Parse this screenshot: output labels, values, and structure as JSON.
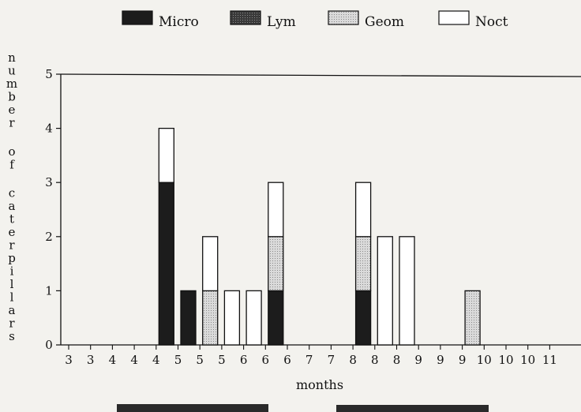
{
  "chart_data": {
    "type": "bar",
    "stacked": true,
    "xlabel": "months",
    "ylabel": "number of caterpillars",
    "ylim": [
      0,
      5
    ],
    "yticks": [
      "0",
      "1",
      "2",
      "3",
      "4",
      "5"
    ],
    "categories": [
      "3",
      "3",
      "4",
      "4",
      "4",
      "5",
      "5",
      "5",
      "6",
      "6",
      "6",
      "7",
      "7",
      "8",
      "8",
      "8",
      "9",
      "9",
      "9",
      "10",
      "10",
      "10",
      "11"
    ],
    "series": [
      {
        "name": "Micro",
        "color": "#1c1c1c",
        "values": [
          0,
          0,
          0,
          0,
          3,
          1,
          0,
          0,
          0,
          1,
          0,
          0,
          0,
          1,
          0,
          0,
          0,
          0,
          0,
          0,
          0,
          0,
          0
        ]
      },
      {
        "name": "Lym",
        "color": "#4a4a4a",
        "values": [
          0,
          0,
          0,
          0,
          0,
          0,
          0,
          0,
          0,
          0,
          0,
          0,
          0,
          0,
          0,
          0,
          0,
          0,
          0,
          0,
          0,
          0,
          0
        ]
      },
      {
        "name": "Geom",
        "color": "#c9c9c9",
        "values": [
          0,
          0,
          0,
          0,
          0,
          0,
          1,
          0,
          0,
          1,
          0,
          0,
          0,
          1,
          0,
          0,
          0,
          0,
          1,
          0,
          0,
          0,
          0
        ]
      },
      {
        "name": "Noct",
        "color": "#ffffff",
        "values": [
          0,
          0,
          0,
          0,
          1,
          0,
          1,
          1,
          1,
          1,
          0,
          0,
          0,
          1,
          2,
          2,
          0,
          0,
          0,
          0,
          0,
          0,
          0
        ]
      }
    ],
    "legend": "top",
    "grid": false
  }
}
